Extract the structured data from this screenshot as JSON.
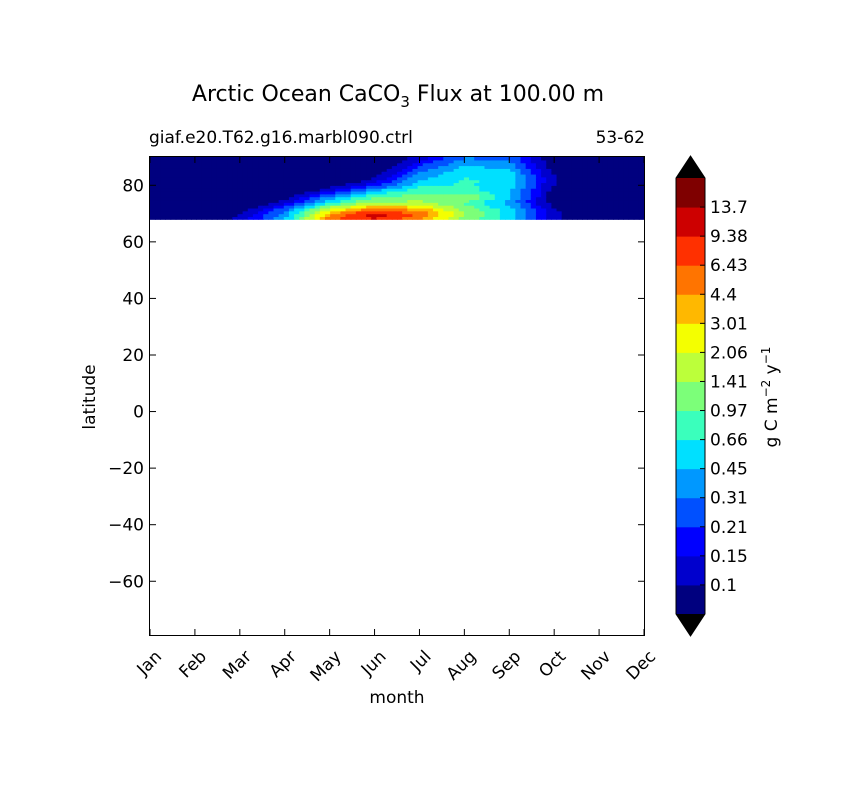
{
  "chart_data": {
    "type": "heatmap",
    "title": {
      "prefix": "Arctic Ocean CaCO",
      "subscript": "3",
      "suffix": " Flux at 100.00 m"
    },
    "subtitle_left": "giaf.e20.T62.g16.marbl090.ctrl",
    "subtitle_right": "53-62",
    "xlabel": "month",
    "ylabel": "latitude",
    "x_ticks": [
      "Jan",
      "Feb",
      "Mar",
      "Apr",
      "May",
      "Jun",
      "Jul",
      "Aug",
      "Sep",
      "Oct",
      "Nov",
      "Dec"
    ],
    "xlim": [
      0,
      11
    ],
    "y_ticks": [
      80,
      60,
      40,
      20,
      0,
      -20,
      -40,
      -60
    ],
    "y_tick_labels": [
      "80",
      "60",
      "40",
      "20",
      "0",
      "−20",
      "−40",
      "−60"
    ],
    "ylim": [
      -79,
      90
    ],
    "data_lat_range": [
      68,
      90
    ],
    "grid": false,
    "colorbar": {
      "label_prefix": "g C m",
      "label_exp1": "−2",
      "label_mid": " y",
      "label_exp2": "−1",
      "levels": [
        "0.1",
        "0.15",
        "0.21",
        "0.31",
        "0.45",
        "0.66",
        "0.97",
        "1.41",
        "2.06",
        "3.01",
        "4.4",
        "6.43",
        "9.38",
        "13.7"
      ],
      "colors": [
        "#00007f",
        "#0000cd",
        "#0000ff",
        "#0050ff",
        "#0098ff",
        "#00e0ff",
        "#3affbc",
        "#7cff79",
        "#bcff3a",
        "#f4ff00",
        "#ffb800",
        "#ff7400",
        "#ff3000",
        "#cd0000",
        "#7f0000"
      ],
      "under_color": "#000000",
      "over_color": "#000000"
    },
    "latitude_bands": [
      68,
      70,
      72,
      74,
      76,
      78,
      80,
      82,
      84,
      86,
      88,
      90
    ],
    "monthly_flux": [
      [
        0.05,
        0.06,
        0.12,
        0.45,
        6.0,
        9.5,
        4.5,
        1.2,
        0.5,
        0.12,
        0.05,
        0.05
      ],
      [
        0.05,
        0.05,
        0.1,
        0.35,
        4.0,
        12.0,
        6.0,
        1.5,
        0.6,
        0.12,
        0.05,
        0.05
      ],
      [
        0.05,
        0.05,
        0.07,
        0.25,
        1.8,
        4.5,
        3.5,
        1.2,
        0.5,
        0.1,
        0.05,
        0.05
      ],
      [
        0.05,
        0.05,
        0.05,
        0.12,
        0.6,
        1.6,
        1.5,
        0.9,
        0.4,
        0.08,
        0.05,
        0.05
      ],
      [
        0.05,
        0.05,
        0.05,
        0.08,
        0.35,
        0.9,
        1.2,
        1.5,
        0.5,
        0.08,
        0.05,
        0.05
      ],
      [
        0.05,
        0.05,
        0.05,
        0.05,
        0.15,
        0.5,
        0.9,
        0.8,
        0.5,
        0.08,
        0.05,
        0.05
      ],
      [
        0.05,
        0.05,
        0.05,
        0.05,
        0.08,
        0.2,
        0.6,
        0.7,
        0.55,
        0.1,
        0.05,
        0.05
      ],
      [
        0.05,
        0.05,
        0.05,
        0.05,
        0.05,
        0.12,
        0.45,
        0.7,
        0.6,
        0.1,
        0.05,
        0.05
      ],
      [
        0.05,
        0.05,
        0.05,
        0.05,
        0.05,
        0.08,
        0.35,
        0.6,
        0.55,
        0.1,
        0.05,
        0.05
      ],
      [
        0.05,
        0.05,
        0.05,
        0.05,
        0.05,
        0.06,
        0.25,
        0.5,
        0.45,
        0.08,
        0.05,
        0.05
      ],
      [
        0.05,
        0.05,
        0.05,
        0.05,
        0.05,
        0.05,
        0.18,
        0.4,
        0.35,
        0.08,
        0.05,
        0.05
      ],
      [
        0.05,
        0.05,
        0.05,
        0.05,
        0.05,
        0.05,
        0.12,
        0.3,
        0.25,
        0.07,
        0.05,
        0.05
      ]
    ]
  }
}
